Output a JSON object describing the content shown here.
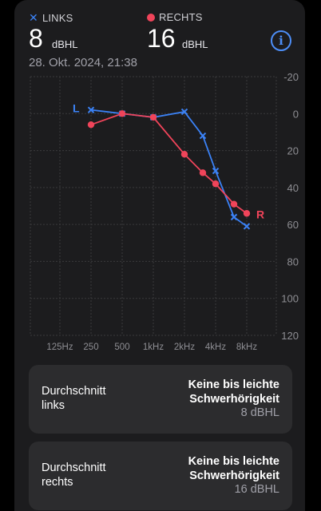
{
  "header": {
    "left_legend": "LINKS",
    "right_legend": "RECHTS",
    "left_value": "8",
    "right_value": "16",
    "unit": "dBHL",
    "date": "28. Okt. 2024, 21:38",
    "info_icon": "info-circle-icon"
  },
  "colors": {
    "left": "#3b82f6",
    "right": "#f0445a",
    "grid": "#3a3a3c",
    "axis_text": "#8e8e93"
  },
  "chart_data": {
    "type": "line",
    "x_categories": [
      "125Hz",
      "250",
      "500",
      "1kHz",
      "2kHz",
      "4kHz",
      "8kHz"
    ],
    "y_ticks": [
      "-20",
      "0",
      "20",
      "40",
      "60",
      "80",
      "100",
      "120"
    ],
    "ylim": [
      -20,
      120
    ],
    "y_inverted": true,
    "grid": true,
    "series": [
      {
        "name": "LINKS",
        "marker": "x",
        "end_label": "L",
        "points": [
          {
            "f": "250",
            "db": -2
          },
          {
            "f": "500",
            "db": 0
          },
          {
            "f": "1kHz",
            "db": 2
          },
          {
            "f": "2kHz",
            "db": -1
          },
          {
            "f": "3kHz",
            "db": 12
          },
          {
            "f": "4kHz",
            "db": 31
          },
          {
            "f": "6kHz",
            "db": 56
          },
          {
            "f": "8kHz",
            "db": 61
          }
        ]
      },
      {
        "name": "RECHTS",
        "marker": "dot",
        "end_label": "R",
        "points": [
          {
            "f": "250",
            "db": 6
          },
          {
            "f": "500",
            "db": 0
          },
          {
            "f": "1kHz",
            "db": 2
          },
          {
            "f": "2kHz",
            "db": 22
          },
          {
            "f": "3kHz",
            "db": 32
          },
          {
            "f": "4kHz",
            "db": 38
          },
          {
            "f": "6kHz",
            "db": 49
          },
          {
            "f": "8kHz",
            "db": 54
          }
        ]
      }
    ]
  },
  "summaries": [
    {
      "label_line1": "Durchschnitt",
      "label_line2": "links",
      "result_line1": "Keine bis leichte",
      "result_line2": "Schwerhörigkeit",
      "value": "8 dBHL"
    },
    {
      "label_line1": "Durchschnitt",
      "label_line2": "rechts",
      "result_line1": "Keine bis leichte",
      "result_line2": "Schwerhörigkeit",
      "value": "16 dBHL"
    }
  ]
}
